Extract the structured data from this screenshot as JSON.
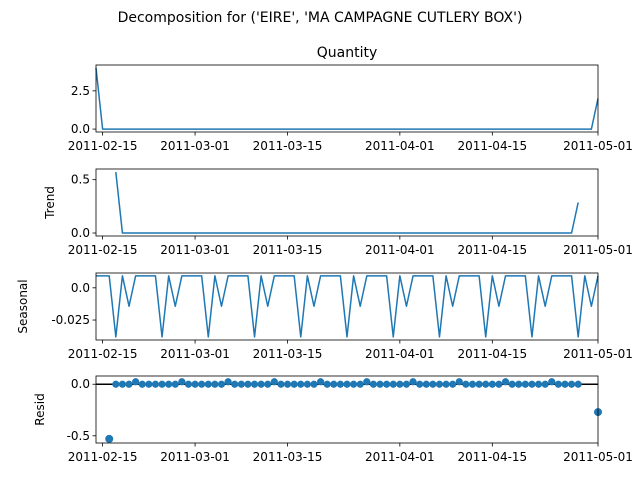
{
  "figure": {
    "suptitle": "Decomposition for ('EIRE', 'MA CAMPAGNE CUTLERY BOX')"
  },
  "chart_data": [
    {
      "type": "line",
      "panel": "observed",
      "title": "Quantity",
      "ylabel": "",
      "x_start": "2011-02-14",
      "x_end": "2011-05-01",
      "ylim": [
        -0.19,
        4.19
      ],
      "yticks": [
        0.0,
        2.5
      ],
      "xticks": [
        "2011-02-15",
        "2011-03-01",
        "2011-03-15",
        "2011-04-01",
        "2011-04-15",
        "2011-05-01"
      ],
      "points": [
        [
          "2011-02-14",
          4.0
        ],
        [
          "2011-02-15",
          0.0
        ],
        [
          "2011-04-30",
          0.0
        ],
        [
          "2011-05-01",
          2.0
        ]
      ]
    },
    {
      "type": "line",
      "panel": "trend",
      "title": "",
      "ylabel": "Trend",
      "x_start": "2011-02-14",
      "x_end": "2011-05-01",
      "ylim": [
        -0.028,
        0.6
      ],
      "yticks": [
        0.0,
        0.5
      ],
      "xticks": [
        "2011-02-15",
        "2011-03-01",
        "2011-03-15",
        "2011-04-01",
        "2011-04-15",
        "2011-05-01"
      ],
      "points": [
        [
          "2011-02-17",
          0.571
        ],
        [
          "2011-02-18",
          0.0
        ],
        [
          "2011-04-27",
          0.0
        ],
        [
          "2011-04-28",
          0.286
        ]
      ]
    },
    {
      "type": "line",
      "panel": "seasonal",
      "title": "",
      "ylabel": "Seasonal",
      "x_start": "2011-02-14",
      "x_end": "2011-05-01",
      "ylim": [
        -0.0405,
        0.0115
      ],
      "yticks": [
        0.0,
        -0.025
      ],
      "xticks": [
        "2011-02-15",
        "2011-03-01",
        "2011-03-15",
        "2011-04-01",
        "2011-04-15",
        "2011-05-01"
      ],
      "weekly_pattern": [
        0.0093,
        0.0093,
        0.0093,
        -0.0381,
        0.0093,
        -0.0143,
        0.0093
      ]
    },
    {
      "type": "scatter",
      "panel": "resid",
      "title": "",
      "ylabel": "Resid",
      "x_start": "2011-02-14",
      "x_end": "2011-05-01",
      "ylim": [
        -0.57,
        0.08
      ],
      "yticks": [
        0.0,
        -0.5
      ],
      "xticks": [
        "2011-02-15",
        "2011-03-01",
        "2011-03-15",
        "2011-04-01",
        "2011-04-15",
        "2011-05-01"
      ],
      "baseline": 0.0,
      "outliers": [
        [
          "2011-02-16",
          -0.53
        ],
        [
          "2011-05-01",
          -0.27
        ]
      ],
      "weekly_resid": [
        0.0,
        0.0,
        0.0,
        0.024,
        0.0,
        0.0,
        0.0
      ],
      "resid_range": [
        "2011-02-17",
        "2011-04-28"
      ]
    }
  ]
}
